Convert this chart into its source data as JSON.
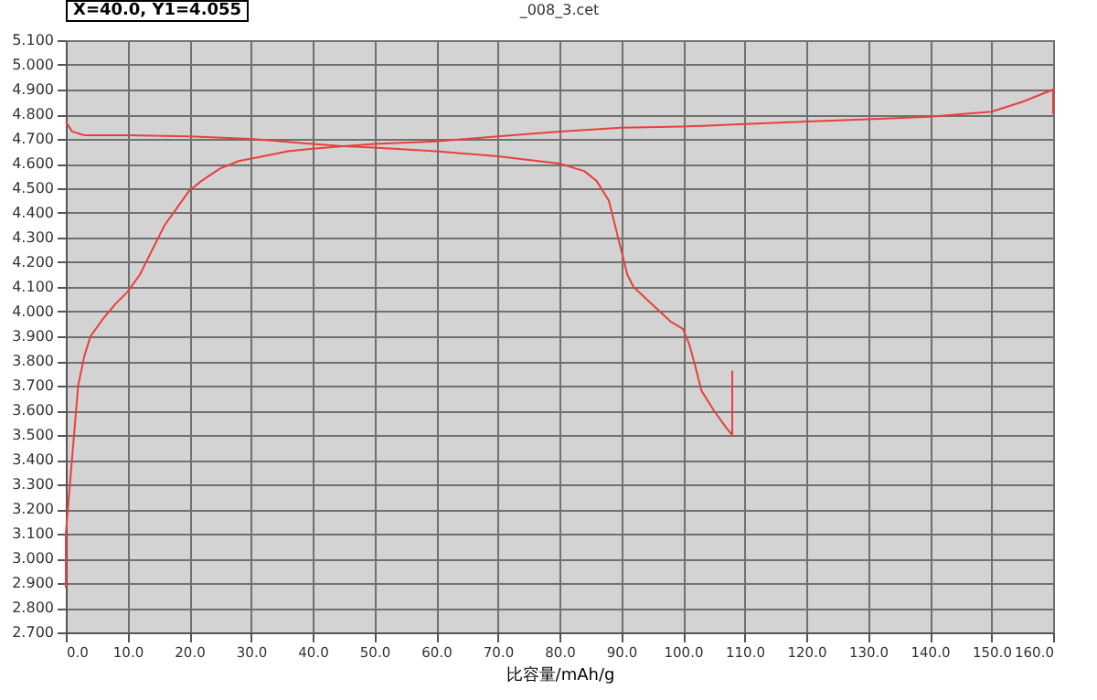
{
  "chart_data": {
    "type": "line",
    "title": "_008_3.cet",
    "xlabel": "比容量/mAh/g",
    "annotations": [
      "X=40.0, Y1=4.055"
    ],
    "grid": true,
    "marker": "none",
    "line_style": "solid",
    "xlim": [
      0,
      160
    ],
    "ylim": [
      2.7,
      5.1
    ],
    "xticks": [
      {
        "value": 0,
        "label": "0.0"
      },
      {
        "value": 10,
        "label": "10.0"
      },
      {
        "value": 20,
        "label": "20.0"
      },
      {
        "value": 30,
        "label": "30.0"
      },
      {
        "value": 40,
        "label": "40.0"
      },
      {
        "value": 50,
        "label": "50.0"
      },
      {
        "value": 60,
        "label": "60.0"
      },
      {
        "value": 70,
        "label": "70.0"
      },
      {
        "value": 80,
        "label": "80.0"
      },
      {
        "value": 90,
        "label": "90.0"
      },
      {
        "value": 100,
        "label": "100.0"
      },
      {
        "value": 110,
        "label": "110.0"
      },
      {
        "value": 120,
        "label": "120.0"
      },
      {
        "value": 130,
        "label": "130.0"
      },
      {
        "value": 140,
        "label": "140.0"
      },
      {
        "value": 150,
        "label": "150.0"
      },
      {
        "value": 160,
        "label": "160.0"
      }
    ],
    "yticks": [
      {
        "value": 2.7,
        "label": "2.700"
      },
      {
        "value": 2.8,
        "label": "2.800"
      },
      {
        "value": 2.9,
        "label": "2.900"
      },
      {
        "value": 3.0,
        "label": "3.000"
      },
      {
        "value": 3.1,
        "label": "3.100"
      },
      {
        "value": 3.2,
        "label": "3.200"
      },
      {
        "value": 3.3,
        "label": "3.300"
      },
      {
        "value": 3.4,
        "label": "3.400"
      },
      {
        "value": 3.5,
        "label": "3.500"
      },
      {
        "value": 3.6,
        "label": "3.600"
      },
      {
        "value": 3.7,
        "label": "3.700"
      },
      {
        "value": 3.8,
        "label": "3.800"
      },
      {
        "value": 3.9,
        "label": "3.900"
      },
      {
        "value": 4.0,
        "label": "4.000"
      },
      {
        "value": 4.1,
        "label": "4.100"
      },
      {
        "value": 4.2,
        "label": "4.200"
      },
      {
        "value": 4.3,
        "label": "4.300"
      },
      {
        "value": 4.4,
        "label": "4.400"
      },
      {
        "value": 4.5,
        "label": "4.500"
      },
      {
        "value": 4.6,
        "label": "4.600"
      },
      {
        "value": 4.7,
        "label": "4.700"
      },
      {
        "value": 4.8,
        "label": "4.800"
      },
      {
        "value": 4.9,
        "label": "4.900"
      },
      {
        "value": 5.0,
        "label": "5.000"
      },
      {
        "value": 5.1,
        "label": "5.100"
      }
    ],
    "series": [
      {
        "color": "#e8403c",
        "x": [
          0,
          0,
          0.5,
          1,
          1.5,
          2,
          3,
          4,
          6,
          8,
          10,
          12,
          14,
          16,
          18,
          20,
          22,
          25,
          28,
          32,
          36,
          40,
          45,
          50,
          60,
          70,
          80,
          90,
          100,
          110,
          120,
          130,
          140,
          145,
          150,
          155,
          160,
          160
        ],
        "values": [
          2.88,
          3.1,
          3.25,
          3.4,
          3.55,
          3.7,
          3.82,
          3.9,
          3.97,
          4.03,
          4.08,
          4.15,
          4.25,
          4.35,
          4.42,
          4.49,
          4.53,
          4.58,
          4.61,
          4.63,
          4.65,
          4.66,
          4.67,
          4.68,
          4.69,
          4.71,
          4.73,
          4.745,
          4.75,
          4.76,
          4.77,
          4.78,
          4.79,
          4.8,
          4.81,
          4.85,
          4.9,
          4.8
        ]
      },
      {
        "color": "#e8403c",
        "x": [
          0,
          1,
          3,
          10,
          20,
          30,
          40,
          45,
          50,
          60,
          70,
          80,
          84,
          86,
          88,
          89,
          90,
          91,
          92,
          95,
          98,
          100,
          101,
          102,
          103,
          105,
          107,
          108,
          108
        ],
        "values": [
          4.77,
          4.73,
          4.715,
          4.715,
          4.71,
          4.7,
          4.68,
          4.67,
          4.665,
          4.65,
          4.63,
          4.6,
          4.57,
          4.53,
          4.45,
          4.35,
          4.25,
          4.15,
          4.1,
          4.03,
          3.96,
          3.93,
          3.87,
          3.78,
          3.68,
          3.6,
          3.53,
          3.5,
          3.76
        ]
      }
    ]
  }
}
